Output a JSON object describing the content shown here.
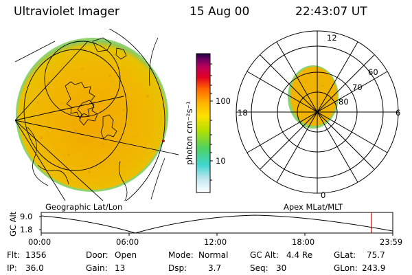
{
  "header": {
    "instrument": "Ultraviolet Imager",
    "date": "15 Aug 00",
    "time": "22:43:07 UT"
  },
  "left_panel": {
    "caption": "Geographic Lat/Lon"
  },
  "colorbar": {
    "label": "photon cm⁻²s⁻¹",
    "ticks": [
      "100",
      "10"
    ],
    "scale": "log"
  },
  "polar_plot": {
    "caption": "Apex MLat/MLT",
    "mlt_labels": {
      "top": "12",
      "left": "18",
      "right": "6",
      "bottom": "0"
    },
    "lat_labels": [
      "60",
      "70",
      "80"
    ]
  },
  "altitude_plot": {
    "ylabel": "GC Alt",
    "yticks": [
      "9.0",
      "1.8"
    ],
    "xticks": [
      "00:00",
      "06:00",
      "12:00",
      "18:00",
      "23:59"
    ],
    "current_time_marker_color": "#cc0000"
  },
  "info": {
    "flt": {
      "label": "Flt:",
      "value": "1356"
    },
    "ip": {
      "label": "IP:",
      "value": "36.0"
    },
    "door": {
      "label": "Door:",
      "value": "Open"
    },
    "gain": {
      "label": "Gain:",
      "value": "13"
    },
    "mode": {
      "label": "Mode:",
      "value": "Normal"
    },
    "dsp": {
      "label": "Dsp:",
      "value": "3.7"
    },
    "gcalt": {
      "label": "GC Alt:",
      "value": "4.4 Re"
    },
    "seq": {
      "label": "Seq:",
      "value": "30"
    },
    "glat": {
      "label": "GLat:",
      "value": "75.7"
    },
    "glon": {
      "label": "GLon:",
      "value": "243.9"
    }
  },
  "colors": {
    "aurora_base": "#f0b400",
    "aurora_edge": "#7ec86e",
    "outline": "#000000"
  }
}
